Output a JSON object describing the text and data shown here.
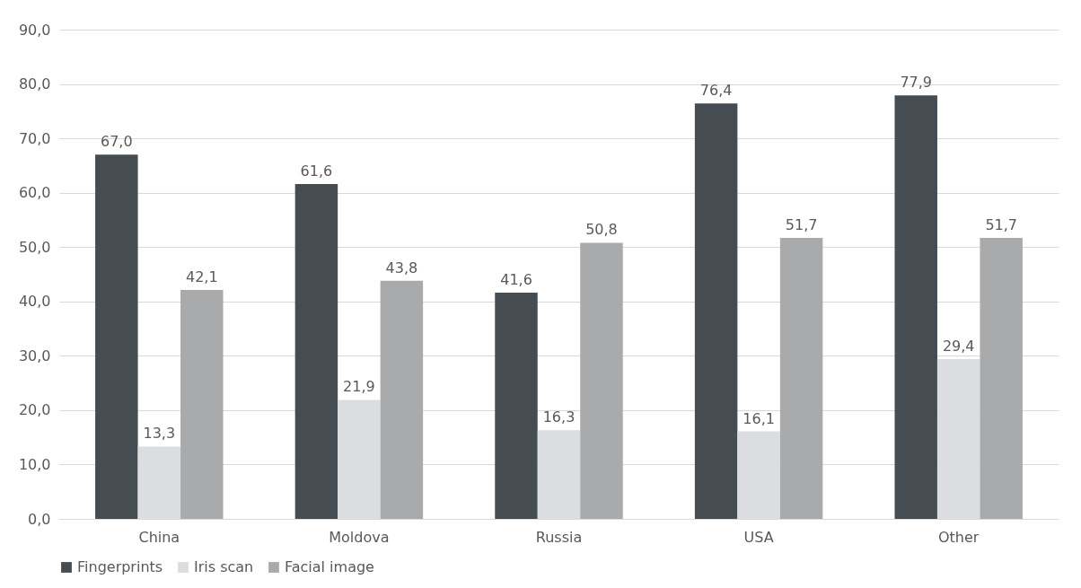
{
  "chart_data": {
    "type": "bar",
    "categories": [
      "China",
      "Moldova",
      "Russia",
      "USA",
      "Other"
    ],
    "series": [
      {
        "name": "Fingerprints",
        "color": "#454d52",
        "values": [
          67.0,
          61.6,
          41.6,
          76.4,
          77.9
        ],
        "value_labels": [
          "67,0",
          "61,6",
          "41,6",
          "76,4",
          "77,9"
        ]
      },
      {
        "name": "Iris scan",
        "color": "#dcdde0",
        "values": [
          13.3,
          21.9,
          16.3,
          16.1,
          29.4
        ],
        "value_labels": [
          "13,3",
          "21,9",
          "16,3",
          "16,1",
          "29,4"
        ]
      },
      {
        "name": "Facial image",
        "color": "#a9aaac",
        "values": [
          42.1,
          43.8,
          50.8,
          51.7,
          51.7
        ],
        "value_labels": [
          "42,1",
          "43,8",
          "50,8",
          "51,7",
          "51,7"
        ]
      }
    ],
    "ylim": [
      0,
      90
    ],
    "yticks": [
      {
        "value": 0,
        "label": "0,0"
      },
      {
        "value": 10,
        "label": "10,0"
      },
      {
        "value": 20,
        "label": "20,0"
      },
      {
        "value": 30,
        "label": "30,0"
      },
      {
        "value": 40,
        "label": "40,0"
      },
      {
        "value": 50,
        "label": "50,0"
      },
      {
        "value": 60,
        "label": "60,0"
      },
      {
        "value": 70,
        "label": "70,0"
      },
      {
        "value": 80,
        "label": "80,0"
      },
      {
        "value": 90,
        "label": "90,0"
      }
    ],
    "grid": "y",
    "legend": "bottom"
  }
}
